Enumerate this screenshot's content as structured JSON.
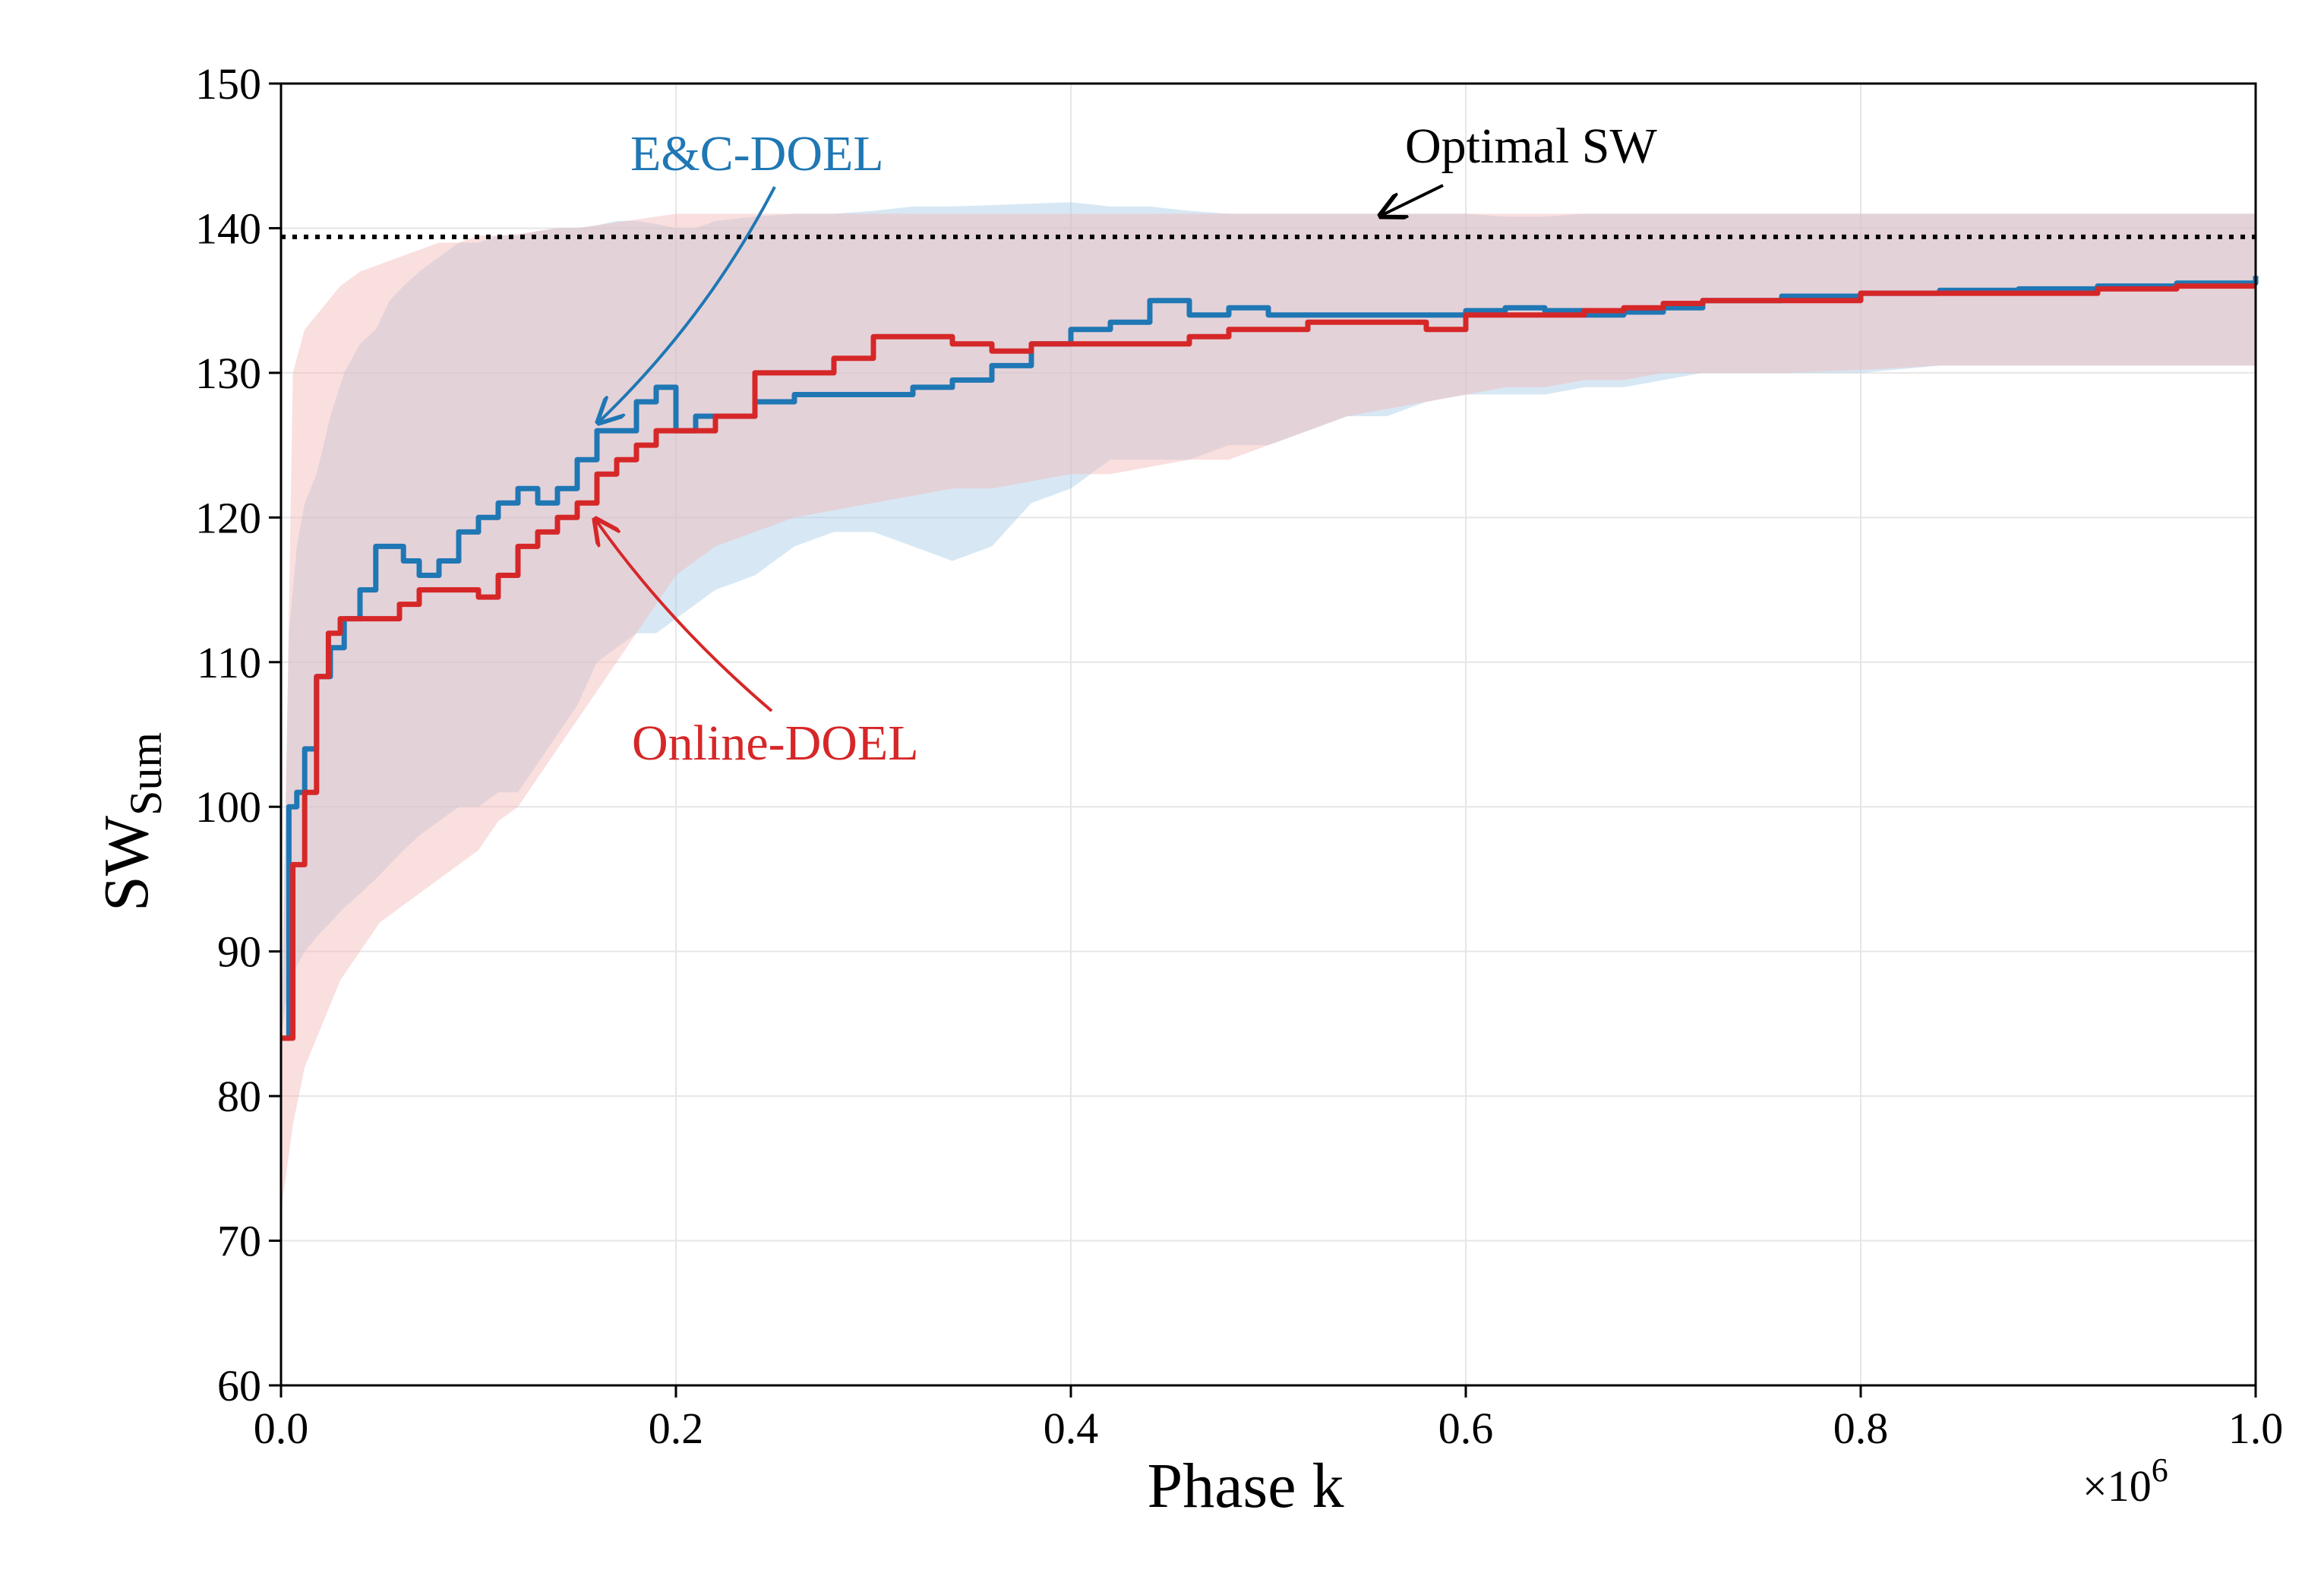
{
  "chart_data": {
    "type": "line",
    "xlabel": "Phase k",
    "ylabel_main": "SW",
    "ylabel_sub": "Sum",
    "x_multiplier_base": "×10",
    "x_multiplier_exp": "6",
    "xlim": [
      0,
      1.0
    ],
    "ylim": [
      60,
      150
    ],
    "xticks": [
      0.0,
      0.2,
      0.4,
      0.6,
      0.8,
      1.0
    ],
    "xtick_labels": [
      "0.0",
      "0.2",
      "0.4",
      "0.6",
      "0.8",
      "1.0"
    ],
    "yticks": [
      60,
      70,
      80,
      90,
      100,
      110,
      120,
      130,
      140,
      150
    ],
    "ytick_labels": [
      "60",
      "70",
      "80",
      "90",
      "100",
      "110",
      "120",
      "130",
      "140",
      "150"
    ],
    "grid": true,
    "optimal": {
      "label": "Optimal SW",
      "value": 139.4,
      "color": "#000000"
    },
    "series": [
      {
        "name": "E&C-DOEL",
        "color": "#1f77b4",
        "band_color": "#a6cde6",
        "x": [
          0.0,
          0.004,
          0.008,
          0.012,
          0.018,
          0.025,
          0.032,
          0.04,
          0.048,
          0.055,
          0.062,
          0.07,
          0.08,
          0.09,
          0.1,
          0.11,
          0.12,
          0.13,
          0.14,
          0.15,
          0.16,
          0.17,
          0.18,
          0.19,
          0.2,
          0.21,
          0.22,
          0.24,
          0.26,
          0.28,
          0.3,
          0.32,
          0.34,
          0.36,
          0.38,
          0.4,
          0.42,
          0.44,
          0.46,
          0.48,
          0.5,
          0.52,
          0.54,
          0.56,
          0.58,
          0.6,
          0.62,
          0.64,
          0.66,
          0.68,
          0.7,
          0.72,
          0.74,
          0.76,
          0.8,
          0.84,
          0.88,
          0.92,
          0.96,
          1.0
        ],
        "y": [
          84,
          100,
          101,
          104,
          109,
          111,
          113,
          115,
          118,
          118,
          117,
          116,
          117,
          119,
          120,
          121,
          122,
          121,
          122,
          124,
          126,
          126,
          128,
          129,
          126,
          127,
          127,
          128,
          128.5,
          128.5,
          128.5,
          129,
          129.5,
          130.5,
          132,
          133,
          133.5,
          135,
          134,
          134.5,
          134,
          134,
          134,
          134,
          134,
          134.3,
          134.5,
          134.3,
          134,
          134.2,
          134.5,
          135,
          135,
          135.3,
          135.5,
          135.7,
          135.8,
          136,
          136.2,
          136.7
        ],
        "lower": [
          84,
          88,
          89,
          90,
          91,
          92,
          93,
          94,
          95,
          96,
          97,
          98,
          99,
          100,
          100,
          101,
          101,
          103,
          105,
          107,
          110,
          111,
          112,
          112,
          113,
          114,
          115,
          116,
          118,
          119,
          119,
          118,
          117,
          118,
          121,
          122,
          124,
          124,
          124,
          125,
          125,
          126,
          127,
          127,
          128,
          128.5,
          128.5,
          128.5,
          129,
          129,
          129.5,
          130,
          130,
          130,
          130,
          130.5,
          130.5,
          130.5,
          130.5,
          130.5
        ],
        "upper": [
          84,
          112,
          118,
          121,
          123,
          127,
          130,
          132,
          133,
          135,
          136,
          137,
          138,
          139,
          139,
          139.5,
          139.5,
          139.8,
          140,
          140,
          140.2,
          140.5,
          140.5,
          140.3,
          140,
          140,
          140.5,
          140.8,
          141,
          141,
          141.2,
          141.5,
          141.5,
          141.6,
          141.7,
          141.8,
          141.5,
          141.5,
          141.2,
          141,
          141,
          141,
          141,
          141,
          141,
          141,
          140.8,
          140.8,
          141,
          141,
          141,
          141,
          141,
          141,
          141,
          141,
          141,
          141,
          141,
          141
        ]
      },
      {
        "name": "Online-DOEL",
        "color": "#d62728",
        "band_color": "#f5b7b7",
        "x": [
          0.0,
          0.006,
          0.012,
          0.018,
          0.024,
          0.03,
          0.04,
          0.05,
          0.06,
          0.07,
          0.08,
          0.09,
          0.1,
          0.11,
          0.12,
          0.13,
          0.14,
          0.15,
          0.16,
          0.17,
          0.18,
          0.19,
          0.2,
          0.22,
          0.24,
          0.26,
          0.28,
          0.3,
          0.32,
          0.34,
          0.36,
          0.38,
          0.4,
          0.42,
          0.44,
          0.46,
          0.48,
          0.5,
          0.52,
          0.54,
          0.56,
          0.58,
          0.6,
          0.62,
          0.64,
          0.66,
          0.68,
          0.7,
          0.72,
          0.74,
          0.76,
          0.8,
          0.84,
          0.88,
          0.92,
          0.96,
          1.0
        ],
        "y": [
          84,
          96,
          101,
          109,
          112,
          113,
          113,
          113,
          114,
          115,
          115,
          115,
          114.5,
          116,
          118,
          119,
          120,
          121,
          123,
          124,
          125,
          126,
          126,
          127,
          130,
          130,
          131,
          132.5,
          132.5,
          132,
          131.5,
          132,
          132,
          132,
          132,
          132.5,
          133,
          133,
          133.5,
          133.5,
          133.5,
          133,
          134,
          134,
          134,
          134.3,
          134.5,
          134.8,
          135,
          135,
          135,
          135.5,
          135.5,
          135.5,
          135.8,
          136,
          136
        ],
        "lower": [
          72,
          78,
          82,
          84,
          86,
          88,
          90,
          92,
          93,
          94,
          95,
          96,
          97,
          99,
          100,
          102,
          104,
          106,
          108,
          110,
          112,
          114,
          116,
          118,
          119,
          120,
          120.5,
          121,
          121.5,
          122,
          122,
          122.5,
          123,
          123,
          123.5,
          124,
          124,
          125,
          126,
          127,
          127.5,
          128,
          128.5,
          129,
          129,
          129.5,
          129.5,
          130,
          130,
          130,
          130,
          130.2,
          130.5,
          130.5,
          130.5,
          130.5,
          130.5
        ],
        "upper": [
          80,
          130,
          133,
          134,
          135,
          136,
          137,
          137.5,
          138,
          138.5,
          139,
          139,
          139.5,
          139.5,
          139.6,
          139.8,
          140,
          140,
          140.2,
          140.4,
          140.6,
          140.8,
          141,
          141,
          141,
          141,
          141,
          141,
          141,
          141,
          141,
          141,
          141,
          141,
          141,
          141,
          141,
          141,
          141,
          141,
          141,
          141,
          141,
          141,
          141,
          141,
          141,
          141,
          141,
          141,
          141,
          141,
          141,
          141,
          141,
          141,
          141
        ]
      }
    ]
  }
}
